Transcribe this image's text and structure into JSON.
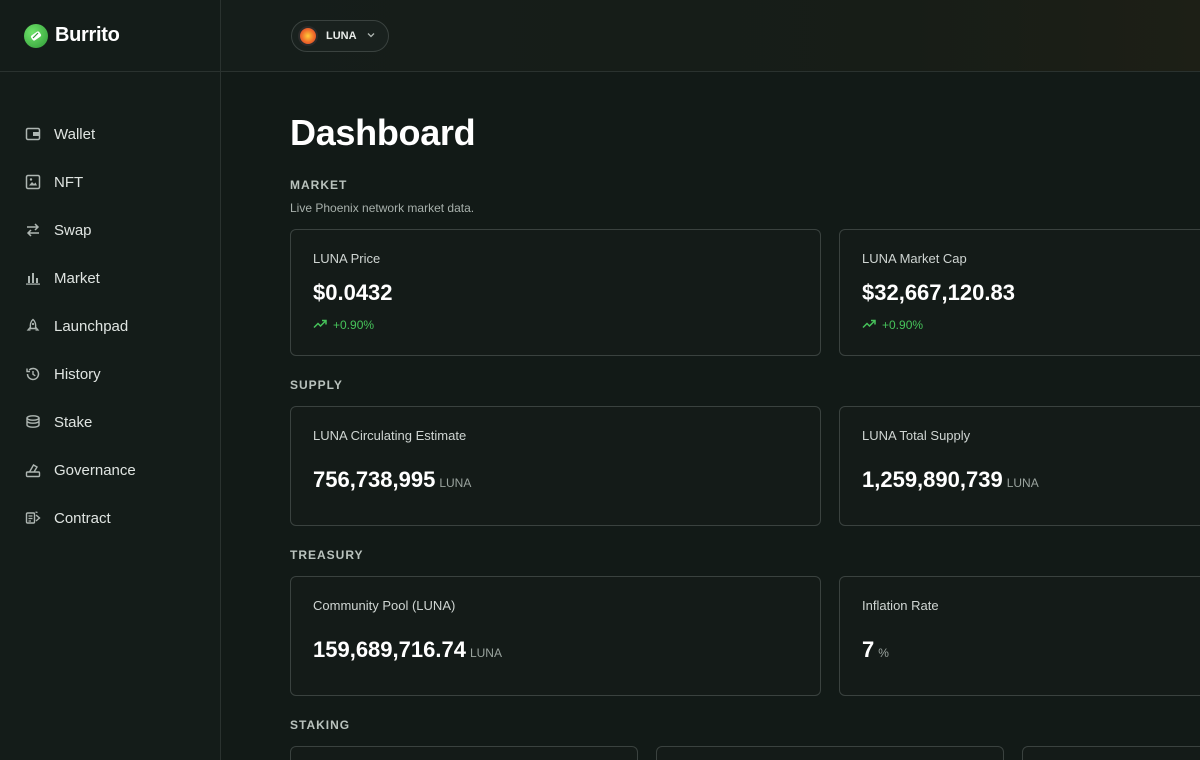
{
  "brand": {
    "name": "Burrito"
  },
  "sidebar": {
    "items": [
      {
        "label": "Wallet",
        "icon": "wallet-icon"
      },
      {
        "label": "NFT",
        "icon": "image-icon"
      },
      {
        "label": "Swap",
        "icon": "swap-icon"
      },
      {
        "label": "Market",
        "icon": "bar-chart-icon"
      },
      {
        "label": "Launchpad",
        "icon": "rocket-icon"
      },
      {
        "label": "History",
        "icon": "history-icon"
      },
      {
        "label": "Stake",
        "icon": "coins-stack-icon"
      },
      {
        "label": "Governance",
        "icon": "ballot-icon"
      },
      {
        "label": "Contract",
        "icon": "contract-icon"
      }
    ]
  },
  "topbar": {
    "chain": "LUNA"
  },
  "page": {
    "title": "Dashboard"
  },
  "market": {
    "title": "MARKET",
    "subtitle": "Live Phoenix network market data.",
    "price": {
      "label": "LUNA Price",
      "value": "$0.0432",
      "change": "+0.90%"
    },
    "cap": {
      "label": "LUNA Market Cap",
      "value": "$32,667,120.83",
      "change": "+0.90%"
    }
  },
  "supply": {
    "title": "SUPPLY",
    "circulating": {
      "label": "LUNA Circulating Estimate",
      "value": "756,738,995",
      "unit": "LUNA"
    },
    "total": {
      "label": "LUNA Total Supply",
      "value": "1,259,890,739",
      "unit": "LUNA"
    }
  },
  "treasury": {
    "title": "TREASURY",
    "pool": {
      "label": "Community Pool (LUNA)",
      "value": "159,689,716.74",
      "unit": "LUNA"
    },
    "inflation": {
      "label": "Inflation Rate",
      "value": "7",
      "unit": "%"
    }
  },
  "staking": {
    "title": "STAKING"
  },
  "colors": {
    "accent_green": "#46c35a",
    "background": "#121a17",
    "card_border": "#3a423f"
  }
}
